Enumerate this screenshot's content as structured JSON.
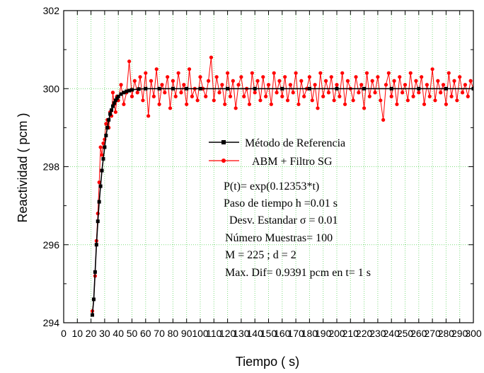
{
  "chart_data": {
    "type": "line",
    "xlabel": "Tiempo ( s)",
    "ylabel": "Reactividad ( pcm )",
    "xlim": [
      0,
      300
    ],
    "ylim": [
      294,
      302
    ],
    "xticks": [
      0,
      10,
      20,
      30,
      40,
      50,
      60,
      70,
      80,
      90,
      100,
      110,
      120,
      130,
      140,
      150,
      160,
      170,
      180,
      190,
      200,
      210,
      220,
      230,
      240,
      250,
      260,
      270,
      280,
      290,
      300
    ],
    "yticks": [
      294,
      296,
      298,
      300,
      302
    ],
    "grid": true,
    "grid_color": "#7fdc7f",
    "legend_position": "center-right",
    "series": [
      {
        "name": "Método de Referencia",
        "color": "#000000",
        "marker": "square",
        "x": [
          21,
          22,
          23,
          24,
          25,
          26,
          27,
          28,
          29,
          30,
          31,
          32,
          33,
          34,
          35,
          36,
          37,
          38,
          39,
          40,
          42,
          44,
          46,
          48,
          50,
          55,
          60,
          70,
          80,
          90,
          100,
          120,
          140,
          160,
          180,
          200,
          220,
          240,
          260,
          280,
          300
        ],
        "y": [
          294.2,
          294.6,
          295.3,
          296.0,
          296.6,
          297.1,
          297.5,
          297.9,
          298.2,
          298.5,
          298.8,
          299.0,
          299.2,
          299.35,
          299.45,
          299.55,
          299.63,
          299.7,
          299.75,
          299.8,
          299.86,
          299.9,
          299.93,
          299.95,
          299.97,
          299.99,
          300.0,
          300.0,
          300.0,
          300.0,
          300.0,
          300.0,
          300.0,
          300.0,
          300.0,
          300.0,
          300.0,
          300.0,
          300.0,
          300.0,
          300.0
        ]
      },
      {
        "name": "ABM + Filtro SG",
        "color": "#ff0000",
        "marker": "circle",
        "x": [
          21,
          22,
          23,
          24,
          25,
          26,
          27,
          28,
          29,
          30,
          31,
          32,
          33,
          34,
          35,
          36,
          37,
          38,
          39,
          40,
          42,
          44,
          46,
          48,
          50,
          52,
          54,
          56,
          58,
          60,
          62,
          64,
          66,
          68,
          70,
          72,
          74,
          76,
          78,
          80,
          82,
          84,
          86,
          88,
          90,
          92,
          94,
          96,
          98,
          100,
          102,
          104,
          106,
          108,
          110,
          112,
          114,
          116,
          118,
          120,
          122,
          124,
          126,
          128,
          130,
          132,
          134,
          136,
          138,
          140,
          142,
          144,
          146,
          148,
          150,
          152,
          154,
          156,
          158,
          160,
          162,
          164,
          166,
          168,
          170,
          172,
          174,
          176,
          178,
          180,
          182,
          184,
          186,
          188,
          190,
          192,
          194,
          196,
          198,
          200,
          202,
          204,
          206,
          208,
          210,
          212,
          214,
          216,
          218,
          220,
          222,
          224,
          226,
          228,
          230,
          232,
          234,
          236,
          238,
          240,
          242,
          244,
          246,
          248,
          250,
          252,
          254,
          256,
          258,
          260,
          262,
          264,
          266,
          268,
          270,
          272,
          274,
          276,
          278,
          280,
          282,
          284,
          286,
          288,
          290,
          292,
          294,
          296,
          298,
          300
        ],
        "y": [
          294.3,
          294.6,
          295.2,
          296.1,
          296.8,
          297.6,
          298.5,
          298.3,
          298.6,
          298.7,
          299.1,
          299.2,
          299.0,
          299.4,
          299.3,
          299.9,
          299.6,
          299.4,
          299.8,
          299.7,
          300.1,
          299.6,
          299.9,
          300.7,
          299.8,
          300.2,
          299.9,
          300.3,
          299.7,
          300.4,
          299.3,
          300.2,
          299.8,
          300.5,
          299.6,
          300.1,
          299.9,
          300.3,
          299.5,
          300.2,
          299.8,
          300.4,
          299.9,
          300.1,
          299.6,
          300.5,
          299.8,
          300.0,
          299.7,
          300.3,
          300.0,
          299.8,
          300.2,
          300.8,
          299.7,
          300.3,
          299.9,
          300.1,
          299.6,
          300.4,
          299.8,
          300.2,
          299.5,
          300.1,
          300.3,
          299.8,
          300.0,
          299.6,
          300.4,
          299.9,
          300.2,
          299.7,
          300.3,
          299.8,
          300.1,
          299.6,
          300.4,
          299.9,
          300.2,
          299.8,
          300.3,
          299.7,
          300.1,
          299.9,
          300.4,
          299.6,
          300.2,
          299.8,
          300.0,
          300.3,
          299.7,
          300.1,
          299.5,
          300.4,
          299.8,
          300.2,
          299.9,
          300.3,
          299.7,
          300.1,
          299.8,
          300.4,
          299.6,
          300.2,
          300.0,
          299.7,
          300.3,
          299.9,
          300.1,
          299.5,
          300.4,
          299.8,
          300.2,
          299.9,
          300.3,
          299.7,
          299.2,
          300.1,
          300.4,
          299.8,
          300.2,
          299.6,
          300.3,
          299.9,
          300.1,
          299.7,
          300.4,
          299.8,
          300.2,
          299.9,
          300.3,
          299.6,
          300.1,
          299.8,
          300.5,
          299.7,
          300.2,
          299.9,
          300.1,
          299.6,
          300.4,
          299.8,
          300.2,
          299.7,
          300.3,
          299.9,
          300.1,
          299.8,
          300.2,
          300.0
        ]
      }
    ],
    "annotations": [
      "P(t)= exp(0.12353*t)",
      "Paso de tiempo  h =0.01 s",
      "Desv. Estandar σ = 0.01",
      "Número Muestras= 100",
      "M = 225 ;  d = 2",
      "Max. Dif=  0.9391 pcm en t=  1 s"
    ]
  }
}
